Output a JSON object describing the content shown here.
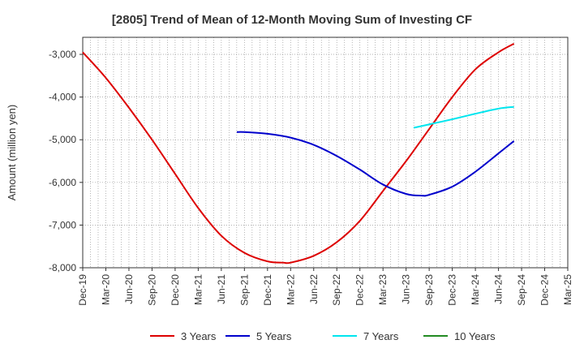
{
  "chart_data": {
    "type": "line",
    "title": "[2805]  Trend of Mean of 12-Month Moving Sum of Investing CF",
    "ylabel": "Amount (million yen)",
    "xlabel": "",
    "ylim": [
      -8000,
      -2600
    ],
    "yticks": [
      -8000,
      -7000,
      -6000,
      -5000,
      -4000,
      -3000
    ],
    "ytick_labels": [
      "-8,000",
      "-7,000",
      "-6,000",
      "-5,000",
      "-4,000",
      "-3,000"
    ],
    "xtick_labels": [
      "Dec-19",
      "Mar-20",
      "Jun-20",
      "Sep-20",
      "Dec-20",
      "Mar-21",
      "Jun-21",
      "Sep-21",
      "Dec-21",
      "Mar-22",
      "Jun-22",
      "Sep-22",
      "Dec-22",
      "Mar-23",
      "Jun-23",
      "Sep-23",
      "Dec-23",
      "Mar-24",
      "Jun-24",
      "Sep-24",
      "Dec-24",
      "Mar-25"
    ],
    "grid": true,
    "legend_position": "bottom",
    "series": [
      {
        "name": "3 Years",
        "color": "#dd0000",
        "points": [
          [
            0,
            -2950
          ],
          [
            1,
            -3550
          ],
          [
            2,
            -4250
          ],
          [
            3,
            -5000
          ],
          [
            4,
            -5800
          ],
          [
            5,
            -6600
          ],
          [
            6,
            -7250
          ],
          [
            7,
            -7650
          ],
          [
            8,
            -7850
          ],
          [
            8.67,
            -7880
          ],
          [
            9,
            -7880
          ],
          [
            10,
            -7720
          ],
          [
            11,
            -7400
          ],
          [
            12,
            -6900
          ],
          [
            13,
            -6200
          ],
          [
            14,
            -5500
          ],
          [
            15,
            -4750
          ],
          [
            16,
            -4000
          ],
          [
            17,
            -3350
          ],
          [
            18,
            -2950
          ],
          [
            18.67,
            -2750
          ]
        ]
      },
      {
        "name": "5 Years",
        "color": "#0000cc",
        "points": [
          [
            6.67,
            -4820
          ],
          [
            7,
            -4820
          ],
          [
            8,
            -4860
          ],
          [
            9,
            -4950
          ],
          [
            10,
            -5120
          ],
          [
            11,
            -5380
          ],
          [
            12,
            -5700
          ],
          [
            13,
            -6050
          ],
          [
            14,
            -6270
          ],
          [
            14.67,
            -6310
          ],
          [
            15,
            -6290
          ],
          [
            16,
            -6100
          ],
          [
            17,
            -5750
          ],
          [
            18,
            -5320
          ],
          [
            18.67,
            -5030
          ]
        ]
      },
      {
        "name": "7 Years",
        "color": "#00e5ee",
        "points": [
          [
            14.33,
            -4720
          ],
          [
            15,
            -4640
          ],
          [
            16,
            -4520
          ],
          [
            17,
            -4390
          ],
          [
            18,
            -4270
          ],
          [
            18.67,
            -4230
          ]
        ]
      },
      {
        "name": "10 Years",
        "color": "#228b22",
        "points": []
      }
    ]
  }
}
